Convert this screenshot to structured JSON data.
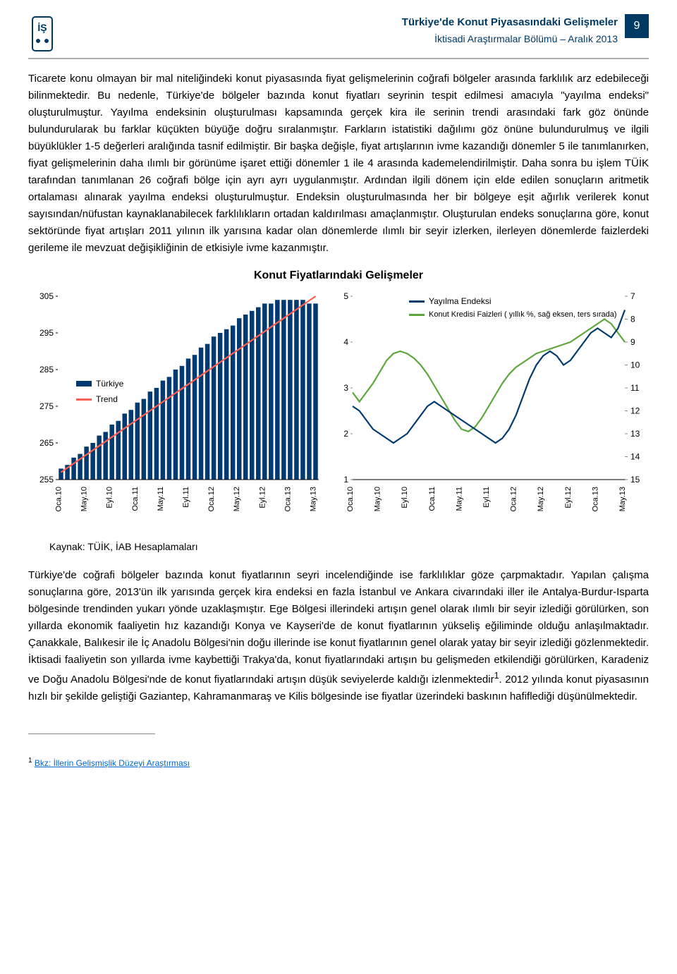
{
  "header": {
    "title": "Türkiye'de Konut Piyasasındaki Gelişmeler",
    "subtitle": "İktisadi Araştırmalar Bölümü – Aralık 2013",
    "page_number": "9"
  },
  "paragraph1": "Ticarete konu olmayan bir mal niteliğindeki konut piyasasında fiyat gelişmelerinin coğrafi bölgeler arasında farklılık arz edebileceği bilinmektedir. Bu nedenle, Türkiye'de bölgeler bazında konut fiyatları seyrinin tespit edilmesi amacıyla \"yayılma endeksi\" oluşturulmuştur. Yayılma endeksinin oluşturulması kapsamında gerçek kira ile serinin trendi arasındaki fark göz önünde bulundurularak bu farklar küçükten büyüğe doğru sıralanmıştır. Farkların istatistiki dağılımı göz önüne bulundurulmuş ve ilgili büyüklükler 1-5 değerleri aralığında tasnif edilmiştir. Bir başka değişle, fiyat artışlarının ivme kazandığı dönemler 5 ile tanımlanırken, fiyat gelişmelerinin daha ılımlı bir görünüme işaret ettiği dönemler 1 ile 4 arasında kademelendirilmiştir. Daha sonra bu işlem TÜİK tarafından tanımlanan 26 coğrafi bölge için ayrı ayrı uygulanmıştır. Ardından ilgili dönem için elde edilen sonuçların aritmetik ortalaması alınarak yayılma endeksi oluşturulmuştur. Endeksin oluşturulmasında her bir bölgeye eşit ağırlık verilerek konut sayısından/nüfustan kaynaklanabilecek farklılıkların ortadan kaldırılması amaçlanmıştır. Oluşturulan endeks sonuçlarına göre, konut sektöründe fiyat artışları 2011 yılının ilk yarısına kadar olan dönemlerde ılımlı bir seyir izlerken, ilerleyen dönemlerde faizlerdeki gerileme ile mevzuat değişikliğinin de etkisiyle ivme kazanmıştır.",
  "chart_title": "Konut Fiyatlarındaki Gelişmeler",
  "left_chart": {
    "type": "bar+line",
    "y_min": 255,
    "y_max": 305,
    "y_step": 10,
    "x_labels": [
      "Oca.10",
      "May.10",
      "Eyl.10",
      "Oca.11",
      "May.11",
      "Eyl.11",
      "Oca.12",
      "May.12",
      "Eyl.12",
      "Oca.13",
      "May.13"
    ],
    "legend": {
      "bar": "Türkiye",
      "line": "Trend"
    },
    "bar_color": "#003a70",
    "trend_color": "#ff6050",
    "axis_color": "#000",
    "bars": [
      258,
      259,
      261,
      262,
      264,
      265,
      267,
      268,
      270,
      271,
      273,
      274,
      276,
      277,
      279,
      280,
      282,
      283,
      285,
      286,
      288,
      289,
      291,
      292,
      294,
      295,
      296,
      297,
      299,
      300,
      301,
      302,
      303,
      303,
      304,
      304,
      304,
      304,
      304,
      303,
      303
    ],
    "trend": [
      257,
      258.2,
      259.4,
      260.6,
      261.8,
      263,
      264.2,
      265.4,
      266.6,
      267.8,
      269,
      270.2,
      271.4,
      272.6,
      273.8,
      275,
      276.2,
      277.4,
      278.6,
      279.8,
      281,
      282.2,
      283.4,
      284.6,
      285.8,
      287,
      288.2,
      289.4,
      290.6,
      291.8,
      293,
      294.2,
      295.4,
      296.6,
      297.8,
      299,
      300.2,
      301.4,
      302.6,
      303.8,
      305
    ]
  },
  "right_chart": {
    "type": "dual-axis-line",
    "yL_min": 1,
    "yL_max": 5,
    "yL_step": 1,
    "yR_min": 7,
    "yR_max": 15,
    "yR_step": 1,
    "yR_reversed": true,
    "x_labels": [
      "Oca.10",
      "May.10",
      "Eyl.10",
      "Oca.11",
      "May.11",
      "Eyl.11",
      "Oca.12",
      "May.12",
      "Eyl.12",
      "Oca.13",
      "May.13"
    ],
    "legend": {
      "blue": "Yayılma Endeksi",
      "green": "Konut Kredisi Faizleri ( yıllık %, sağ eksen, ters sırada)"
    },
    "blue_color": "#003a70",
    "green_color": "#5da63b",
    "axis_color": "#000",
    "tick_color": "#888",
    "blue": [
      2.6,
      2.5,
      2.3,
      2.1,
      2.0,
      1.9,
      1.8,
      1.9,
      2.0,
      2.2,
      2.4,
      2.6,
      2.7,
      2.6,
      2.5,
      2.4,
      2.3,
      2.2,
      2.1,
      2.0,
      1.9,
      1.8,
      1.9,
      2.1,
      2.4,
      2.8,
      3.2,
      3.5,
      3.7,
      3.8,
      3.7,
      3.5,
      3.6,
      3.8,
      4.0,
      4.2,
      4.3,
      4.2,
      4.1,
      4.3,
      4.7
    ],
    "green": [
      11.2,
      11.6,
      11.2,
      10.8,
      10.3,
      9.8,
      9.5,
      9.4,
      9.5,
      9.7,
      10.0,
      10.4,
      10.9,
      11.4,
      11.9,
      12.4,
      12.8,
      12.9,
      12.7,
      12.3,
      11.8,
      11.3,
      10.8,
      10.4,
      10.1,
      9.9,
      9.7,
      9.5,
      9.4,
      9.3,
      9.2,
      9.1,
      9.0,
      8.8,
      8.6,
      8.4,
      8.2,
      8.0,
      8.2,
      8.6,
      9.0
    ]
  },
  "source": "Kaynak: TÜİK, İAB Hesaplamaları",
  "paragraph2": "Türkiye'de coğrafi bölgeler bazında konut fiyatlarının seyri incelendiğinde ise farklılıklar göze çarpmaktadır. Yapılan çalışma sonuçlarına göre, 2013'ün ilk yarısında gerçek kira endeksi en fazla İstanbul ve Ankara civarındaki iller ile Antalya-Burdur-Isparta bölgesinde trendinden yukarı yönde uzaklaşmıştır. Ege Bölgesi illerindeki artışın genel olarak ılımlı bir seyir izlediği görülürken, son yıllarda ekonomik faaliyetin hız kazandığı Konya ve Kayseri'de de konut fiyatlarının yükseliş eğiliminde olduğu anlaşılmaktadır. Çanakkale, Balıkesir ile İç Anadolu Bölgesi'nin doğu illerinde ise konut fiyatlarının genel olarak yatay bir seyir izlediği gözlenmektedir. İktisadi faaliyetin son yıllarda ivme kaybettiği Trakya'da, konut fiyatlarındaki artışın bu gelişmeden etkilendiği görülürken, Karadeniz ve Doğu Anadolu Bölgesi'nde de konut fiyatlarındaki artışın düşük seviyelerde kaldığı izlenmektedir",
  "footnote_marker": "1",
  "paragraph2_tail": ". 2012 yılında konut piyasasının hızlı bir şekilde geliştiği Gaziantep, Kahramanmaraş ve Kilis bölgesinde ise fiyatlar üzerindeki baskının hafiflediği düşünülmektedir.",
  "footnote": {
    "num": "1",
    "text": "Bkz: İllerin Gelişmişlik Düzeyi Araştırması",
    "href": "#"
  }
}
